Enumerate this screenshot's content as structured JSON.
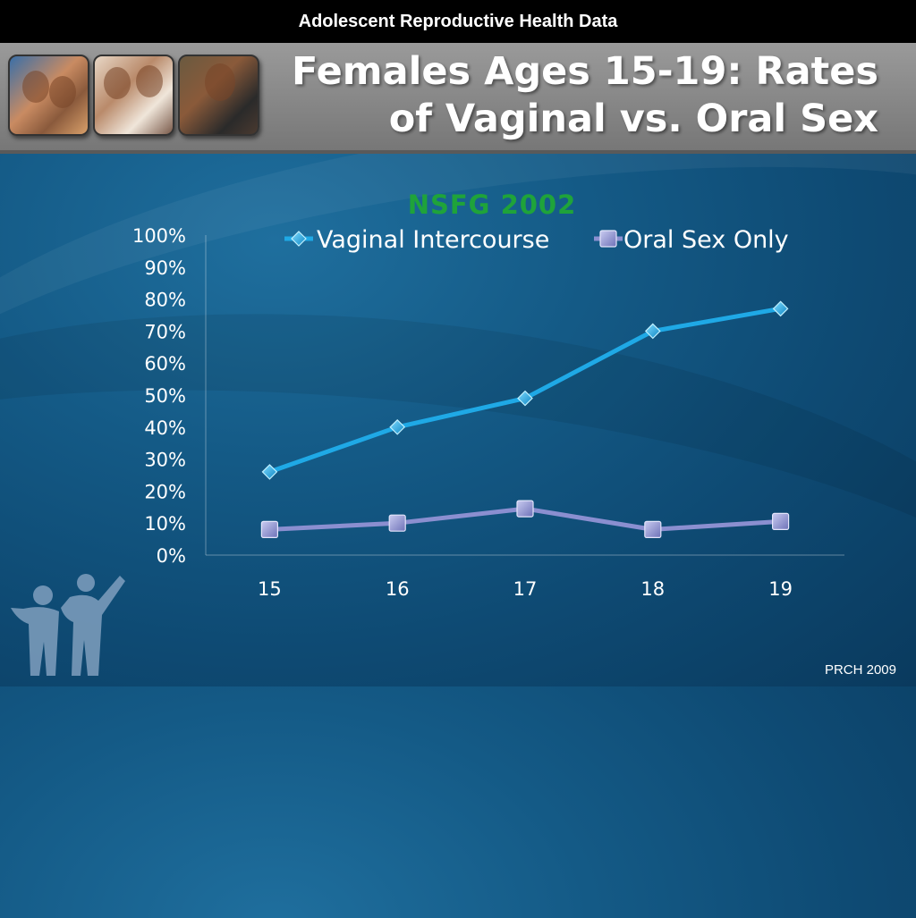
{
  "top_bar": {
    "label": "Adolescent Reproductive Health Data"
  },
  "header": {
    "title_line1": "Females Ages 15-19: Rates",
    "title_line2": "of Vaginal vs. Oral Sex"
  },
  "footer": {
    "credit": "PRCH 2009"
  },
  "colors": {
    "series_vaginal": "#1fa9e6",
    "series_oral": "#8b8fd0",
    "chart_title": "#1fa33a"
  },
  "chart_data": {
    "type": "line",
    "title": "NSFG 2002",
    "xlabel": "",
    "ylabel": "",
    "categories": [
      "15",
      "16",
      "17",
      "18",
      "19"
    ],
    "series": [
      {
        "name": "Vaginal Intercourse",
        "marker": "diamond",
        "values": [
          26,
          40,
          49,
          70,
          77
        ]
      },
      {
        "name": "Oral Sex Only",
        "marker": "square",
        "values": [
          8,
          10,
          14.5,
          8,
          10.5
        ]
      }
    ],
    "ylim": [
      0,
      100
    ],
    "yticks": [
      "0%",
      "10%",
      "20%",
      "30%",
      "40%",
      "50%",
      "60%",
      "70%",
      "80%",
      "90%",
      "100%"
    ],
    "grid": false,
    "legend_position": "top"
  }
}
